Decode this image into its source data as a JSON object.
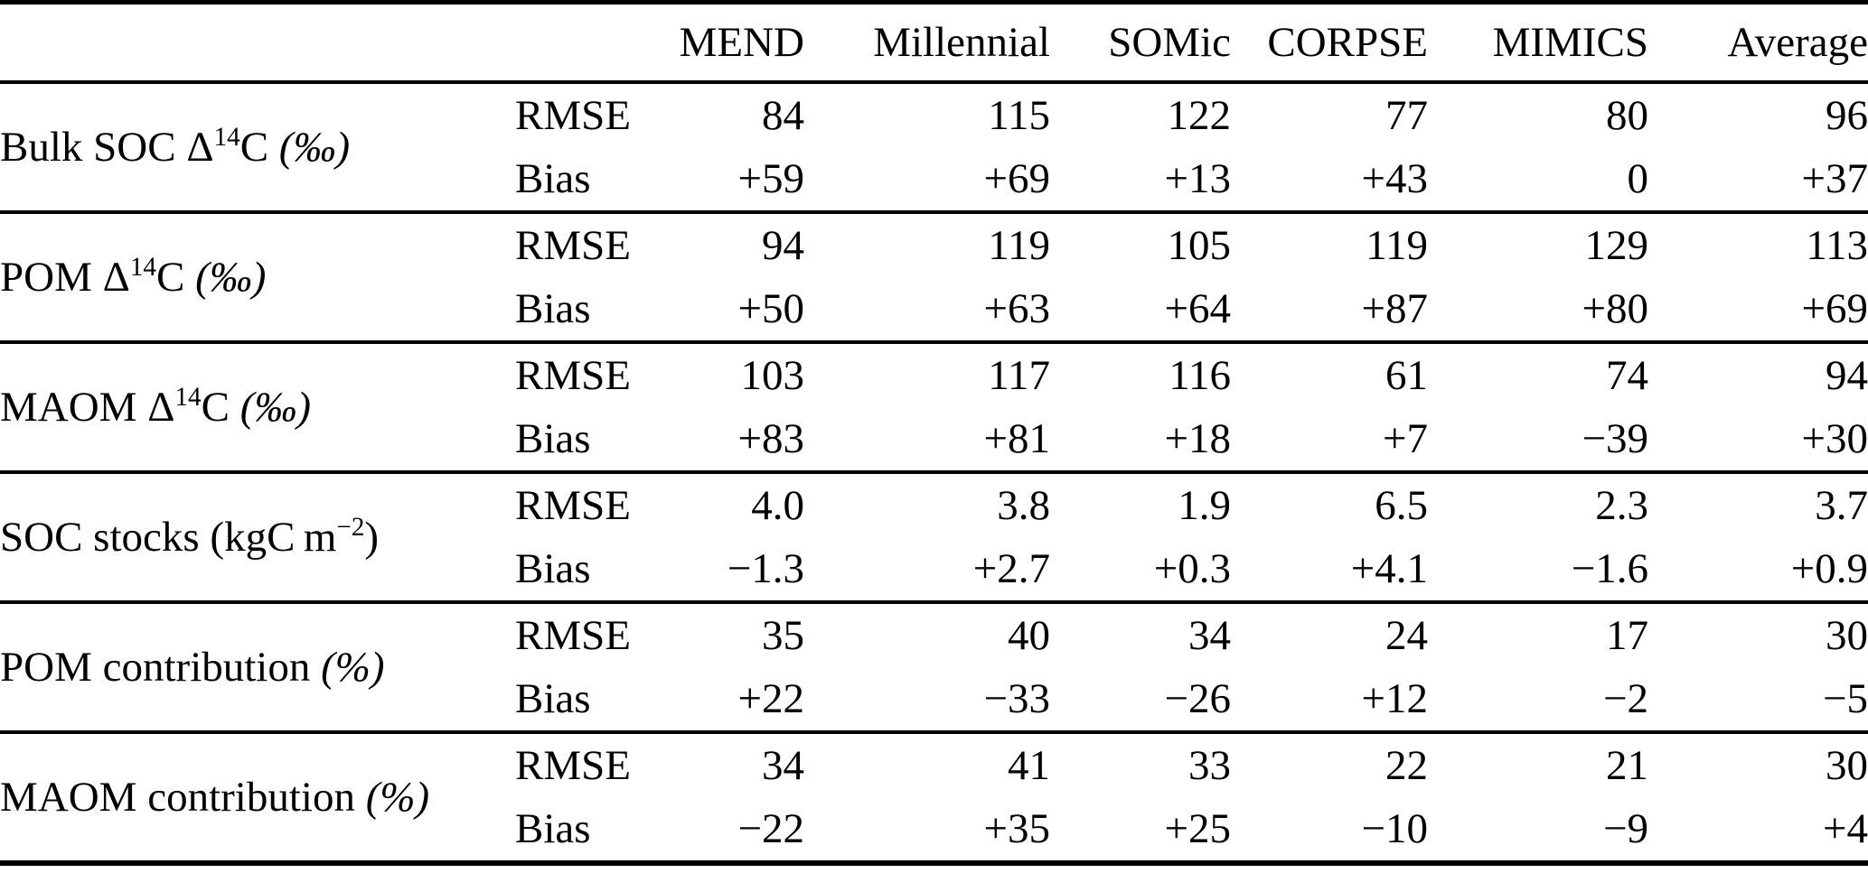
{
  "table": {
    "corner_label": "",
    "model_columns": [
      "MEND",
      "Millennial",
      "SOMic",
      "CORPSE",
      "MIMICS",
      "Average"
    ],
    "stat_labels": {
      "rmse": "RMSE",
      "bias": "Bias"
    },
    "row_groups": [
      {
        "metric_plain": "Bulk SOC Δ14C (‰)",
        "metric_parts": [
          {
            "text": "Bulk SOC Δ",
            "style": "normal"
          },
          {
            "text": "14",
            "style": "sup"
          },
          {
            "text": "C ",
            "style": "normal"
          },
          {
            "text": "(‰)",
            "style": "italic"
          }
        ],
        "rmse": [
          "84",
          "115",
          "122",
          "77",
          "80",
          "96"
        ],
        "bias": [
          "+59",
          "+69",
          "+13",
          "+43",
          "0",
          "+37"
        ]
      },
      {
        "metric_plain": "POM Δ14C (‰)",
        "metric_parts": [
          {
            "text": "POM Δ",
            "style": "normal"
          },
          {
            "text": "14",
            "style": "sup"
          },
          {
            "text": "C ",
            "style": "normal"
          },
          {
            "text": "(‰)",
            "style": "italic"
          }
        ],
        "rmse": [
          "94",
          "119",
          "105",
          "119",
          "129",
          "113"
        ],
        "bias": [
          "+50",
          "+63",
          "+64",
          "+87",
          "+80",
          "+69"
        ]
      },
      {
        "metric_plain": "MAOM Δ14C (‰)",
        "metric_parts": [
          {
            "text": "MAOM Δ",
            "style": "normal"
          },
          {
            "text": "14",
            "style": "sup"
          },
          {
            "text": "C ",
            "style": "normal"
          },
          {
            "text": "(‰)",
            "style": "italic"
          }
        ],
        "rmse": [
          "103",
          "117",
          "116",
          "61",
          "74",
          "94"
        ],
        "bias": [
          "+83",
          "+81",
          "+18",
          "+7",
          "−39",
          "+30"
        ]
      },
      {
        "metric_plain": "SOC stocks (kgC m−2)",
        "metric_parts": [
          {
            "text": "SOC stocks (kgC m",
            "style": "normal"
          },
          {
            "text": "−2",
            "style": "sup"
          },
          {
            "text": ")",
            "style": "normal"
          }
        ],
        "rmse": [
          "4.0",
          "3.8",
          "1.9",
          "6.5",
          "2.3",
          "3.7"
        ],
        "bias": [
          "−1.3",
          "+2.7",
          "+0.3",
          "+4.1",
          "−1.6",
          "+0.9"
        ]
      },
      {
        "metric_plain": "POM contribution (%)",
        "metric_parts": [
          {
            "text": "POM contribution ",
            "style": "normal"
          },
          {
            "text": "(%)",
            "style": "italic"
          }
        ],
        "rmse": [
          "35",
          "40",
          "34",
          "24",
          "17",
          "30"
        ],
        "bias": [
          "+22",
          "−33",
          "−26",
          "+12",
          "−2",
          "−5"
        ]
      },
      {
        "metric_plain": "MAOM contribution (%)",
        "metric_parts": [
          {
            "text": "MAOM contribution ",
            "style": "normal"
          },
          {
            "text": "(%)",
            "style": "italic"
          }
        ],
        "rmse": [
          "34",
          "41",
          "33",
          "22",
          "21",
          "30"
        ],
        "bias": [
          "−22",
          "+35",
          "+25",
          "−10",
          "−9",
          "+4"
        ]
      }
    ]
  }
}
